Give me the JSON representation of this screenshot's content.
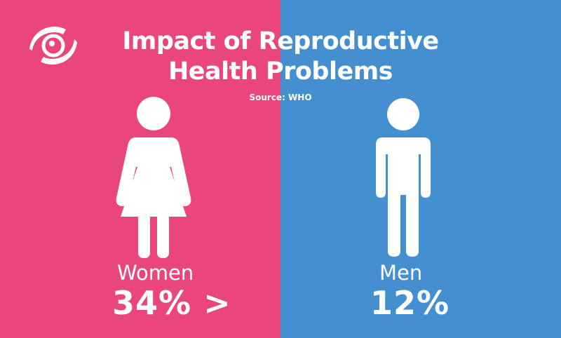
{
  "title": {
    "line1": "Impact of Reproductive",
    "line2": "Health Problems"
  },
  "source": "Source: WHO",
  "groups": [
    {
      "label": "Women",
      "value": "34% >",
      "icon": "woman-icon",
      "background": "#E8467C"
    },
    {
      "label": "Men",
      "value": "12%",
      "icon": "man-icon",
      "background": "#438FD0"
    }
  ],
  "logo_icon": "eye-swirl-logo",
  "colors": {
    "pink": "#E8467C",
    "blue": "#438FD0",
    "text": "#FFFFFF"
  }
}
